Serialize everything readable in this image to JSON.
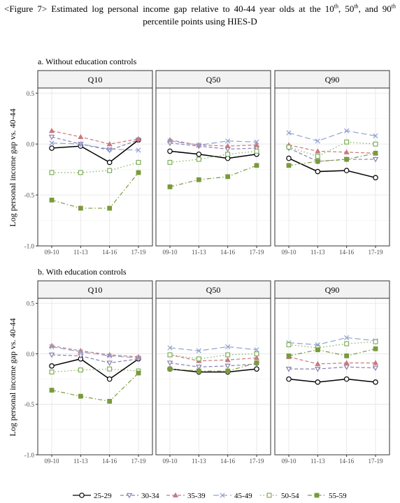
{
  "figure": {
    "title_parts": [
      {
        "t": "<Figure 7> Estimated log personal income gap relative to 40-44 year olds at the 10"
      },
      {
        "sup": "th"
      },
      {
        "t": ", 50"
      },
      {
        "sup": "th"
      },
      {
        "t": ", and 90"
      },
      {
        "sup": "th"
      },
      {
        "t": " percentile points using HIES-D"
      }
    ]
  },
  "chart_data": {
    "type": "line",
    "ylabel": "Log personal income gap vs. 40-44",
    "categories": [
      "09-10",
      "11-13",
      "14-16",
      "17-19"
    ],
    "panel_titles": [
      "Q10",
      "Q50",
      "Q90"
    ],
    "legend": [
      {
        "label": "25-29",
        "color": "#000000",
        "marker": "circle",
        "dash": "solid"
      },
      {
        "label": "30-34",
        "color": "#8b7fb0",
        "marker": "triangle-down",
        "dash": "dashed"
      },
      {
        "label": "35-39",
        "color": "#c8797f",
        "marker": "triangle-up",
        "dash": "dashed"
      },
      {
        "label": "45-49",
        "color": "#8fa3d0",
        "marker": "x",
        "dash": "longdash"
      },
      {
        "label": "50-54",
        "color": "#7fae5c",
        "marker": "square-open",
        "dash": "dotted"
      },
      {
        "label": "55-59",
        "color": "#7a9a3c",
        "marker": "square-filled",
        "dash": "dotdash"
      }
    ],
    "facets": [
      {
        "label": "a. Without education controls",
        "ylim": [
          -1.0,
          0.55
        ],
        "yticks": [
          "0.5",
          "0.0",
          "-0.5",
          "-1.0"
        ],
        "panels": [
          {
            "title": "Q10",
            "series": [
              {
                "name": "25-29",
                "values": [
                  -0.04,
                  -0.02,
                  -0.18,
                  0.04
                ]
              },
              {
                "name": "30-34",
                "values": [
                  0.07,
                  0.0,
                  -0.06,
                  0.04
                ]
              },
              {
                "name": "35-39",
                "values": [
                  0.13,
                  0.07,
                  0.0,
                  0.05
                ]
              },
              {
                "name": "45-49",
                "values": [
                  0.01,
                  0.0,
                  -0.05,
                  -0.06
                ]
              },
              {
                "name": "50-54",
                "values": [
                  -0.28,
                  -0.28,
                  -0.26,
                  -0.18
                ]
              },
              {
                "name": "55-59",
                "values": [
                  -0.55,
                  -0.63,
                  -0.63,
                  -0.28
                ]
              }
            ]
          },
          {
            "title": "Q50",
            "series": [
              {
                "name": "25-29",
                "values": [
                  -0.07,
                  -0.1,
                  -0.14,
                  -0.1
                ]
              },
              {
                "name": "30-34",
                "values": [
                  0.01,
                  -0.02,
                  -0.05,
                  -0.04
                ]
              },
              {
                "name": "35-39",
                "values": [
                  0.04,
                  -0.01,
                  -0.02,
                  -0.01
                ]
              },
              {
                "name": "45-49",
                "values": [
                  0.03,
                  -0.01,
                  0.03,
                  0.02
                ]
              },
              {
                "name": "50-54",
                "values": [
                  -0.18,
                  -0.15,
                  -0.1,
                  -0.07
                ]
              },
              {
                "name": "55-59",
                "values": [
                  -0.42,
                  -0.35,
                  -0.32,
                  -0.21
                ]
              }
            ]
          },
          {
            "title": "Q90",
            "series": [
              {
                "name": "25-29",
                "values": [
                  -0.14,
                  -0.27,
                  -0.26,
                  -0.33
                ]
              },
              {
                "name": "30-34",
                "values": [
                  -0.04,
                  -0.17,
                  -0.15,
                  -0.15
                ]
              },
              {
                "name": "35-39",
                "values": [
                  -0.01,
                  -0.07,
                  -0.08,
                  -0.09
                ]
              },
              {
                "name": "45-49",
                "values": [
                  0.11,
                  0.03,
                  0.13,
                  0.08
                ]
              },
              {
                "name": "50-54",
                "values": [
                  -0.03,
                  -0.12,
                  0.02,
                  0.0
                ]
              },
              {
                "name": "55-59",
                "values": [
                  -0.21,
                  -0.17,
                  -0.15,
                  -0.09
                ]
              }
            ]
          }
        ]
      },
      {
        "label": "b. With education controls",
        "ylim": [
          -1.0,
          0.55
        ],
        "yticks": [
          "0.5",
          "0.0",
          "-0.5",
          "-1.0"
        ],
        "panels": [
          {
            "title": "Q10",
            "series": [
              {
                "name": "25-29",
                "values": [
                  -0.12,
                  -0.05,
                  -0.25,
                  -0.05
                ]
              },
              {
                "name": "30-34",
                "values": [
                  -0.01,
                  -0.02,
                  -0.09,
                  -0.05
                ]
              },
              {
                "name": "35-39",
                "values": [
                  0.08,
                  0.03,
                  -0.01,
                  -0.03
                ]
              },
              {
                "name": "45-49",
                "values": [
                  0.07,
                  0.02,
                  -0.02,
                  -0.04
                ]
              },
              {
                "name": "50-54",
                "values": [
                  -0.18,
                  -0.16,
                  -0.15,
                  -0.17
                ]
              },
              {
                "name": "55-59",
                "values": [
                  -0.36,
                  -0.42,
                  -0.47,
                  -0.19
                ]
              }
            ]
          },
          {
            "title": "Q50",
            "series": [
              {
                "name": "25-29",
                "values": [
                  -0.15,
                  -0.18,
                  -0.18,
                  -0.15
                ]
              },
              {
                "name": "30-34",
                "values": [
                  -0.09,
                  -0.13,
                  -0.12,
                  -0.1
                ]
              },
              {
                "name": "35-39",
                "values": [
                  -0.01,
                  -0.07,
                  -0.06,
                  -0.04
                ]
              },
              {
                "name": "45-49",
                "values": [
                  0.06,
                  0.03,
                  0.07,
                  0.04
                ]
              },
              {
                "name": "50-54",
                "values": [
                  -0.01,
                  -0.05,
                  -0.01,
                  0.0
                ]
              },
              {
                "name": "55-59",
                "values": [
                  -0.15,
                  -0.17,
                  -0.17,
                  -0.09
                ]
              }
            ]
          },
          {
            "title": "Q90",
            "series": [
              {
                "name": "25-29",
                "values": [
                  -0.25,
                  -0.28,
                  -0.25,
                  -0.28
                ]
              },
              {
                "name": "30-34",
                "values": [
                  -0.15,
                  -0.15,
                  -0.13,
                  -0.14
                ]
              },
              {
                "name": "35-39",
                "values": [
                  -0.03,
                  -0.1,
                  -0.09,
                  -0.09
                ]
              },
              {
                "name": "45-49",
                "values": [
                  0.11,
                  0.09,
                  0.16,
                  0.13
                ]
              },
              {
                "name": "50-54",
                "values": [
                  0.09,
                  0.06,
                  0.1,
                  0.12
                ]
              },
              {
                "name": "55-59",
                "values": [
                  -0.02,
                  0.04,
                  -0.02,
                  0.05
                ]
              }
            ]
          }
        ]
      }
    ]
  }
}
